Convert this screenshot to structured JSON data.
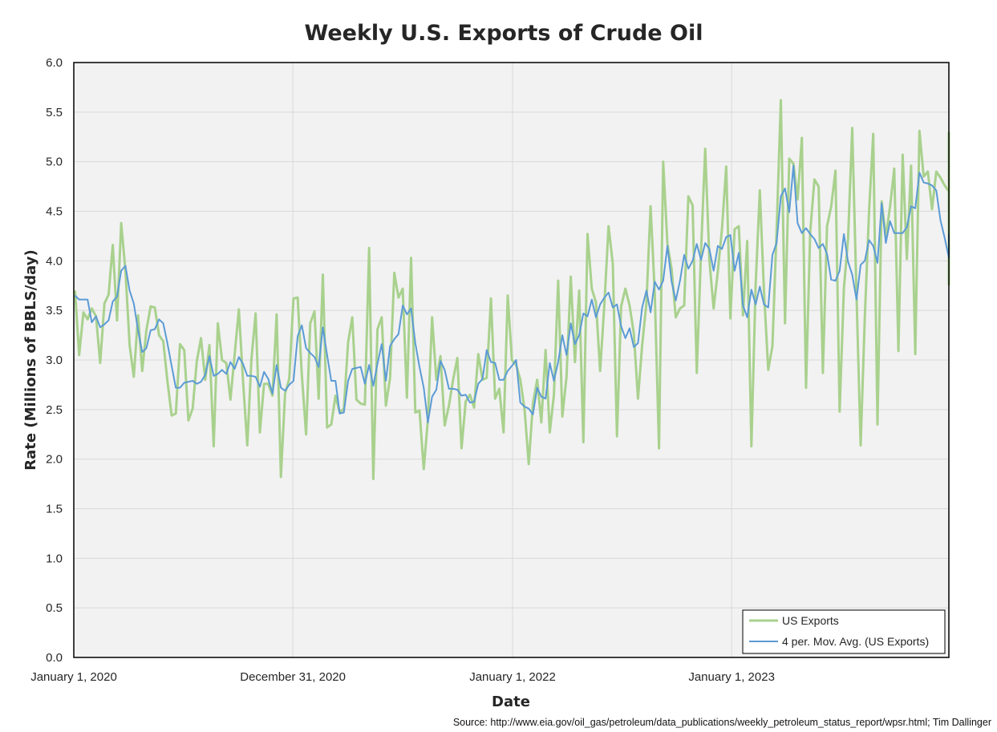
{
  "chart_data": {
    "type": "line",
    "title": "Weekly U.S. Exports of Crude Oil",
    "xlabel": "Date",
    "ylabel": "Rate (Millions of BBLS/day)",
    "source": "Source: http://www.eia.gov/oil_gas/petroleum/data_publications/weekly_petroleum_status_report/wpsr.html; Tim Dallinger",
    "ylim": [
      0,
      6
    ],
    "y_ticks": [
      "0.0",
      "0.5",
      "1.0",
      "1.5",
      "2.0",
      "2.5",
      "3.0",
      "3.5",
      "4.0",
      "4.5",
      "5.0",
      "5.5",
      "6.0"
    ],
    "xlim": [
      "2020-01-01",
      "2023-12-29"
    ],
    "x_ticks": [
      {
        "date": "2020-01-01",
        "label": "January 1, 2020"
      },
      {
        "date": "2020-12-31",
        "label": "December 31, 2020"
      },
      {
        "date": "2022-01-01",
        "label": "January 1, 2022"
      },
      {
        "date": "2023-01-01",
        "label": "January 1, 2023"
      }
    ],
    "grid": true,
    "legend_position": "bottom-right",
    "x": "weekly dates starting 2020-01-03 (one value per week)",
    "series": [
      {
        "name": "US Exports",
        "color": "#a9d18e",
        "start_date": "2020-01-03",
        "values": [
          3.7,
          3.05,
          3.48,
          3.41,
          3.52,
          3.44,
          2.97,
          3.57,
          3.66,
          4.16,
          3.4,
          4.38,
          3.9,
          3.15,
          2.83,
          3.45,
          2.89,
          3.3,
          3.54,
          3.53,
          3.25,
          3.19,
          2.79,
          2.44,
          2.46,
          3.16,
          3.1,
          2.39,
          2.51,
          2.99,
          3.22,
          2.8,
          3.15,
          2.13,
          3.37,
          3.0,
          2.97,
          2.6,
          3.05,
          3.51,
          2.79,
          2.14,
          3.01,
          3.47,
          2.27,
          2.76,
          2.76,
          2.64,
          3.46,
          1.82,
          2.66,
          2.81,
          3.62,
          3.63,
          2.85,
          2.25,
          3.37,
          3.49,
          2.61,
          3.86,
          2.32,
          2.35,
          2.64,
          2.47,
          2.51,
          3.18,
          3.43,
          2.6,
          2.56,
          2.55,
          4.13,
          1.8,
          3.31,
          3.43,
          2.54,
          2.82,
          3.88,
          3.63,
          3.72,
          2.62,
          4.03,
          2.47,
          2.49,
          1.9,
          2.4,
          3.43,
          2.8,
          3.04,
          2.34,
          2.54,
          2.8,
          3.02,
          2.11,
          2.58,
          2.65,
          2.52,
          3.06,
          2.8,
          2.82,
          3.62,
          2.61,
          2.71,
          2.27,
          3.65,
          3.0,
          2.95,
          2.8,
          2.5,
          1.95,
          2.56,
          2.8,
          2.37,
          3.1,
          2.27,
          2.65,
          3.8,
          2.43,
          2.83,
          3.84,
          2.98,
          3.7,
          2.17,
          4.27,
          3.72,
          3.58,
          2.89,
          3.56,
          4.35,
          3.97,
          2.23,
          3.54,
          3.72,
          3.55,
          3.27,
          2.61,
          3.15,
          3.57,
          4.55,
          3.68,
          2.11,
          5.0,
          4.17,
          3.92,
          3.43,
          3.52,
          3.55,
          4.65,
          4.56,
          2.87,
          4.09,
          5.13,
          4.01,
          3.52,
          3.89,
          4.32,
          4.95,
          3.42,
          4.32,
          4.35,
          3.45,
          4.2,
          2.13,
          3.76,
          4.71,
          3.69,
          2.9,
          3.14,
          4.3,
          5.62,
          3.37,
          5.03,
          4.98,
          4.62,
          5.24,
          2.72,
          4.29,
          4.82,
          4.75,
          2.87,
          4.35,
          4.55,
          4.91,
          2.48,
          3.72,
          4.22,
          5.34,
          3.67,
          2.14,
          3.43,
          4.5,
          5.28,
          2.35,
          4.6,
          4.24,
          4.55,
          4.93,
          3.09,
          5.07,
          4.02,
          4.96,
          3.06,
          5.31,
          4.85,
          4.9,
          4.52,
          4.9,
          4.84,
          4.76,
          4.7,
          4.3,
          3.76,
          4.13,
          3.9,
          5.3
        ]
      },
      {
        "name": "4 per. Mov. Avg. (US Exports)",
        "color": "#5b9bd5",
        "start_date": "2020-01-03",
        "values": [
          3.65,
          3.61,
          3.61,
          3.61,
          3.38,
          3.44,
          3.33,
          3.36,
          3.4,
          3.59,
          3.64,
          3.9,
          3.95,
          3.7,
          3.57,
          3.3,
          3.08,
          3.12,
          3.3,
          3.31,
          3.41,
          3.37,
          3.17,
          2.94,
          2.72,
          2.72,
          2.77,
          2.78,
          2.79,
          2.76,
          2.78,
          2.85,
          3.04,
          2.84,
          2.86,
          2.9,
          2.86,
          2.98,
          2.91,
          3.03,
          2.96,
          2.84,
          2.84,
          2.83,
          2.73,
          2.88,
          2.81,
          2.66,
          2.95,
          2.72,
          2.69,
          2.75,
          2.79,
          3.24,
          3.35,
          3.12,
          3.07,
          3.03,
          2.93,
          3.33,
          3.05,
          2.79,
          2.79,
          2.46,
          2.47,
          2.79,
          2.91,
          2.92,
          2.93,
          2.76,
          2.95,
          2.74,
          2.96,
          3.16,
          2.79,
          3.14,
          3.21,
          3.26,
          3.55,
          3.46,
          3.52,
          3.17,
          2.93,
          2.72,
          2.37,
          2.63,
          2.7,
          2.99,
          2.9,
          2.71,
          2.71,
          2.7,
          2.64,
          2.65,
          2.57,
          2.58,
          2.76,
          2.81,
          3.1,
          2.98,
          2.97,
          2.8,
          2.8,
          2.89,
          2.94,
          3.0,
          2.57,
          2.53,
          2.51,
          2.45,
          2.72,
          2.63,
          2.61,
          2.97,
          2.79,
          2.98,
          3.25,
          3.05,
          3.37,
          3.16,
          3.25,
          3.47,
          3.44,
          3.61,
          3.43,
          3.56,
          3.63,
          3.68,
          3.53,
          3.56,
          3.34,
          3.22,
          3.32,
          3.13,
          3.17,
          3.53,
          3.7,
          3.48,
          3.79,
          3.71,
          3.8,
          4.15,
          3.79,
          3.6,
          3.8,
          4.06,
          3.92,
          4.0,
          4.17,
          4.01,
          4.18,
          4.12,
          3.9,
          4.15,
          4.12,
          4.24,
          4.26,
          3.9,
          4.08,
          3.55,
          3.43,
          3.71,
          3.56,
          3.74,
          3.56,
          3.53,
          4.06,
          4.18,
          4.65,
          4.73,
          4.49,
          4.96,
          4.38,
          4.28,
          4.33,
          4.27,
          4.22,
          4.13,
          4.17,
          4.07,
          3.81,
          3.8,
          3.9,
          4.27,
          3.99,
          3.86,
          3.61,
          3.96,
          4.0,
          4.21,
          4.15,
          3.98,
          4.58,
          4.18,
          4.4,
          4.28,
          4.28,
          4.28,
          4.34,
          4.55,
          4.53,
          4.89,
          4.79,
          4.78,
          4.76,
          4.71,
          4.41,
          4.23,
          4.03,
          4.27
        ]
      }
    ]
  }
}
